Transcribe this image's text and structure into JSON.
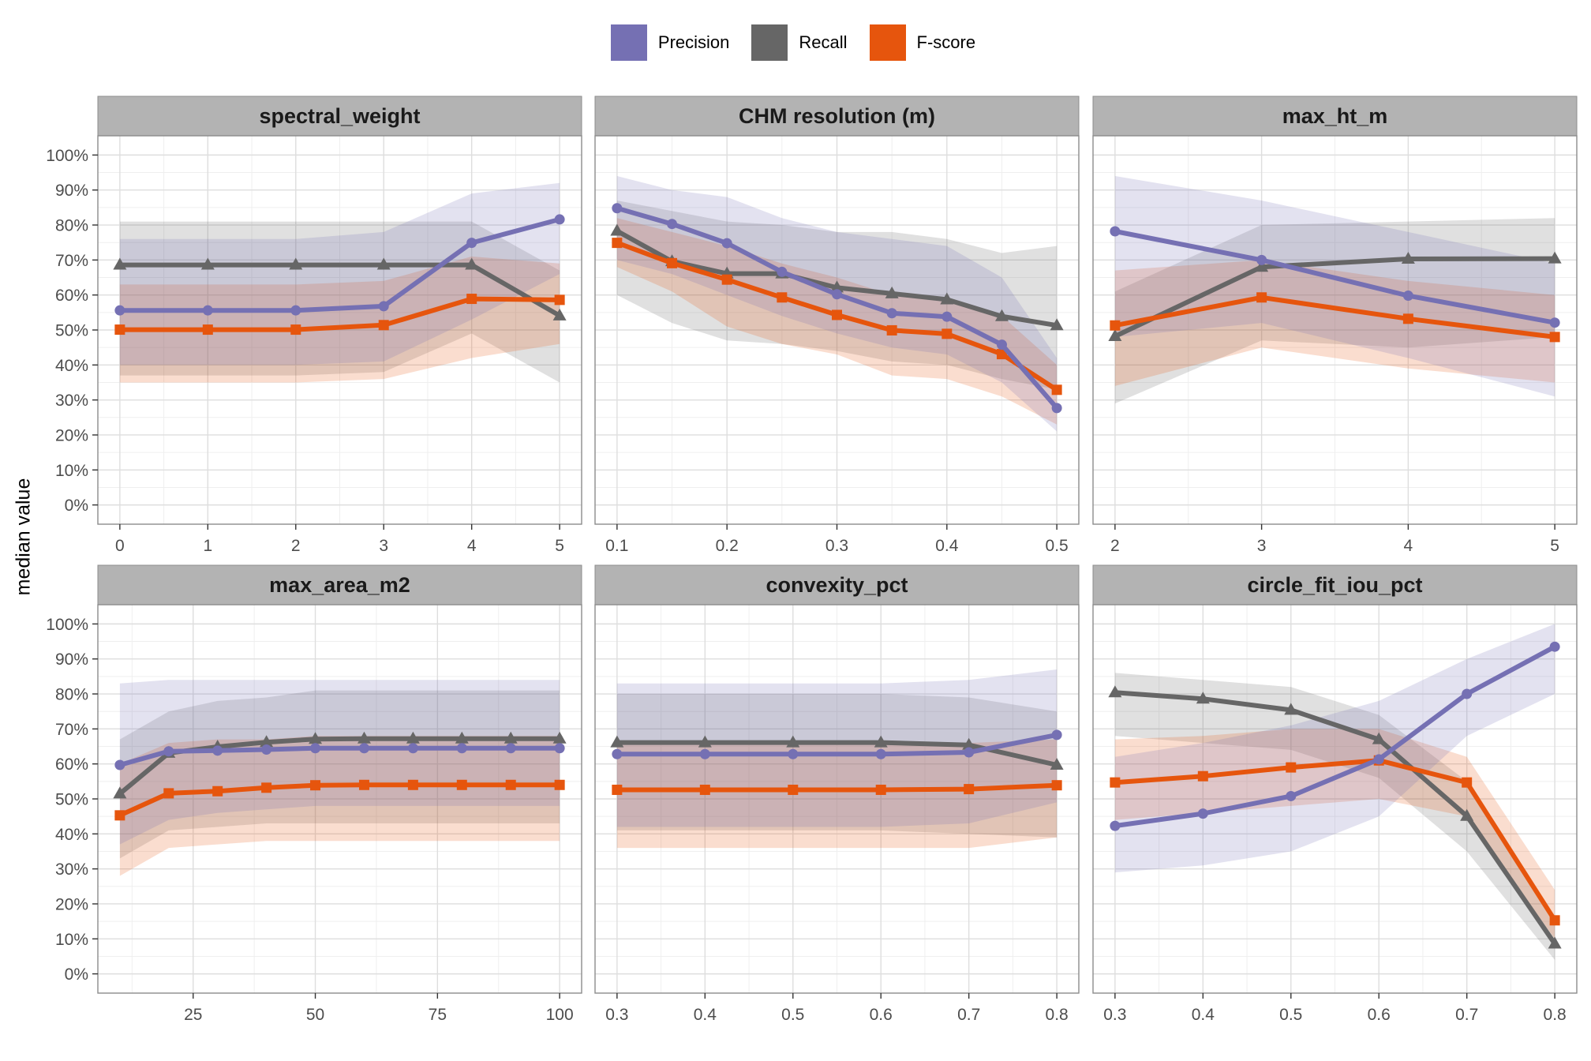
{
  "legend": {
    "items": [
      {
        "label": "Precision",
        "color": "#7570b3"
      },
      {
        "label": "Recall",
        "color": "#666666"
      },
      {
        "label": "F-score",
        "color": "#e6550d"
      }
    ]
  },
  "ylabel": "median value",
  "chart_data": [
    {
      "type": "line",
      "title": "spectral_weight",
      "xlim": [
        -0.25,
        5.25
      ],
      "xticks": [
        0,
        1,
        2,
        3,
        4,
        5
      ],
      "xtick_labels": [
        "0",
        "1",
        "2",
        "3",
        "4",
        "5"
      ],
      "ylim": [
        0,
        100
      ],
      "yticks": [
        0,
        10,
        20,
        30,
        40,
        50,
        60,
        70,
        80,
        90,
        100
      ],
      "ytick_labels": [
        "0%",
        "10%",
        "20%",
        "30%",
        "40%",
        "50%",
        "60%",
        "70%",
        "80%",
        "90%",
        "100%"
      ],
      "x": [
        0,
        1,
        2,
        3,
        4,
        5
      ],
      "series": [
        {
          "name": "Precision",
          "values": [
            55.6,
            55.6,
            55.6,
            56.8,
            74.9,
            81.6
          ],
          "lower": [
            40,
            40,
            40,
            41,
            53,
            66
          ],
          "upper": [
            76,
            76,
            76,
            78,
            89,
            92
          ]
        },
        {
          "name": "Recall",
          "values": [
            68.6,
            68.6,
            68.6,
            68.6,
            68.6,
            54.1
          ],
          "lower": [
            37,
            37,
            37,
            38,
            49,
            35
          ],
          "upper": [
            81,
            81,
            81,
            81,
            81,
            67
          ]
        },
        {
          "name": "F-score",
          "values": [
            50.1,
            50.1,
            50.1,
            51.4,
            58.9,
            58.6
          ],
          "lower": [
            35,
            35,
            35,
            36,
            42,
            46
          ],
          "upper": [
            63,
            63,
            63,
            64,
            71,
            69
          ]
        }
      ]
    },
    {
      "type": "line",
      "title": "CHM resolution (m)",
      "xlim": [
        0.08,
        0.52
      ],
      "xticks": [
        0.1,
        0.2,
        0.3,
        0.4,
        0.5
      ],
      "xtick_labels": [
        "0.1",
        "0.2",
        "0.3",
        "0.4",
        "0.5"
      ],
      "ylim": [
        0,
        100
      ],
      "x": [
        0.1,
        0.15,
        0.2,
        0.25,
        0.3,
        0.35,
        0.4,
        0.45,
        0.5
      ],
      "series": [
        {
          "name": "Precision",
          "values": [
            84.8,
            80.3,
            74.8,
            66.6,
            60.2,
            54.8,
            53.8,
            45.8,
            27.7
          ],
          "lower": [
            70,
            66,
            60,
            54,
            49,
            45,
            43,
            35,
            21
          ],
          "upper": [
            94,
            90,
            88,
            82,
            78,
            76,
            74,
            65,
            42
          ]
        },
        {
          "name": "Recall",
          "values": [
            78.3,
            69.6,
            66.1,
            66.1,
            62.1,
            60.4,
            58.7,
            53.9,
            51.3
          ],
          "lower": [
            60,
            52,
            47,
            46,
            44,
            41,
            40,
            36,
            33
          ],
          "upper": [
            87,
            84,
            81,
            80,
            78,
            78,
            76,
            72,
            74
          ]
        },
        {
          "name": "F-score",
          "values": [
            74.9,
            69.1,
            64.4,
            59.3,
            54.3,
            49.9,
            48.9,
            43.1,
            32.9
          ],
          "lower": [
            68,
            61,
            51,
            46,
            43,
            37,
            36,
            31,
            23
          ],
          "upper": [
            82,
            78,
            74,
            69,
            65,
            60,
            58,
            54,
            40
          ]
        }
      ]
    },
    {
      "type": "line",
      "title": "max_ht_m",
      "xlim": [
        1.85,
        5.15
      ],
      "xticks": [
        2,
        3,
        4,
        5
      ],
      "xtick_labels": [
        "2",
        "3",
        "4",
        "5"
      ],
      "ylim": [
        0,
        100
      ],
      "x": [
        2,
        3,
        4,
        5
      ],
      "series": [
        {
          "name": "Precision",
          "values": [
            78.2,
            70.0,
            59.8,
            52.1
          ],
          "lower": [
            48,
            52,
            42,
            31
          ],
          "upper": [
            94,
            87,
            78,
            69
          ]
        },
        {
          "name": "Recall",
          "values": [
            48.2,
            68.0,
            70.3,
            70.4
          ],
          "lower": [
            29,
            47,
            45,
            48
          ],
          "upper": [
            61,
            80,
            81,
            82
          ]
        },
        {
          "name": "F-score",
          "values": [
            51.3,
            59.3,
            53.2,
            48.0
          ],
          "lower": [
            34,
            45,
            39,
            35
          ],
          "upper": [
            67,
            70,
            64,
            60
          ]
        }
      ]
    },
    {
      "type": "line",
      "title": "max_area_m2",
      "xlim": [
        5.5,
        104.5
      ],
      "xticks": [
        25,
        50,
        75,
        100
      ],
      "xtick_labels": [
        "25",
        "50",
        "75",
        "100"
      ],
      "ylim": [
        0,
        100
      ],
      "x": [
        10,
        20,
        30,
        40,
        50,
        60,
        70,
        80,
        90,
        100
      ],
      "series": [
        {
          "name": "Precision",
          "values": [
            59.7,
            63.6,
            63.8,
            64.1,
            64.5,
            64.5,
            64.5,
            64.5,
            64.5,
            64.5
          ],
          "lower": [
            37,
            44,
            46,
            47,
            48,
            48,
            48,
            48,
            48,
            48
          ],
          "upper": [
            83,
            84,
            84,
            84,
            84,
            84,
            84,
            84,
            84,
            84
          ]
        },
        {
          "name": "Recall",
          "values": [
            51.5,
            63.1,
            64.9,
            66.2,
            67.1,
            67.2,
            67.2,
            67.2,
            67.2,
            67.2
          ],
          "lower": [
            33,
            41,
            42,
            43,
            43,
            43,
            43,
            43,
            43,
            43
          ],
          "upper": [
            67,
            75,
            78,
            79,
            81,
            81,
            81,
            81,
            81,
            81
          ]
        },
        {
          "name": "F-score",
          "values": [
            45.3,
            51.6,
            52.2,
            53.2,
            53.9,
            54.0,
            54.0,
            54.0,
            54.0,
            54.0
          ],
          "lower": [
            28,
            36,
            37,
            38,
            38,
            38,
            38,
            38,
            38,
            38
          ],
          "upper": [
            60,
            66,
            67,
            67,
            68,
            68,
            68,
            68,
            68,
            68
          ]
        }
      ]
    },
    {
      "type": "line",
      "title": "convexity_pct",
      "xlim": [
        0.275,
        0.825
      ],
      "xticks": [
        0.3,
        0.4,
        0.5,
        0.6,
        0.7,
        0.8
      ],
      "xtick_labels": [
        "0.3",
        "0.4",
        "0.5",
        "0.6",
        "0.7",
        "0.8"
      ],
      "ylim": [
        0,
        100
      ],
      "x": [
        0.3,
        0.4,
        0.5,
        0.6,
        0.7,
        0.8
      ],
      "series": [
        {
          "name": "Precision",
          "values": [
            62.8,
            62.8,
            62.8,
            62.8,
            63.3,
            68.3
          ],
          "lower": [
            42,
            42,
            42,
            42,
            43,
            49
          ],
          "upper": [
            83,
            83,
            83,
            83,
            84,
            87
          ]
        },
        {
          "name": "Recall",
          "values": [
            66.1,
            66.1,
            66.1,
            66.1,
            65.4,
            59.7
          ],
          "lower": [
            41,
            41,
            41,
            41,
            40,
            39
          ],
          "upper": [
            80,
            80,
            80,
            80,
            79,
            75
          ]
        },
        {
          "name": "F-score",
          "values": [
            52.6,
            52.6,
            52.6,
            52.6,
            52.8,
            53.9
          ],
          "lower": [
            36,
            36,
            36,
            36,
            36,
            39
          ],
          "upper": [
            66,
            66,
            66,
            66,
            66,
            67
          ]
        }
      ]
    },
    {
      "type": "line",
      "title": "circle_fit_iou_pct",
      "xlim": [
        0.275,
        0.825
      ],
      "xticks": [
        0.3,
        0.4,
        0.5,
        0.6,
        0.7,
        0.8
      ],
      "xtick_labels": [
        "0.3",
        "0.4",
        "0.5",
        "0.6",
        "0.7",
        "0.8"
      ],
      "ylim": [
        0,
        100
      ],
      "x": [
        0.3,
        0.4,
        0.5,
        0.6,
        0.7,
        0.8
      ],
      "series": [
        {
          "name": "Precision",
          "values": [
            42.3,
            45.8,
            50.8,
            61.3,
            80.0,
            93.5
          ],
          "lower": [
            29,
            31,
            35,
            45,
            68,
            80
          ],
          "upper": [
            62,
            66,
            71,
            78,
            90,
            100
          ]
        },
        {
          "name": "Recall",
          "values": [
            80.4,
            78.6,
            75.4,
            67.0,
            45.1,
            8.6
          ],
          "lower": [
            68,
            66,
            64,
            56,
            35,
            4
          ],
          "upper": [
            86,
            84,
            82,
            74,
            55,
            14
          ]
        },
        {
          "name": "F-score",
          "values": [
            54.7,
            56.5,
            59.0,
            61.0,
            54.7,
            15.3
          ],
          "lower": [
            44,
            46,
            48,
            50,
            45,
            10
          ],
          "upper": [
            67,
            68,
            70,
            70,
            62,
            24
          ]
        }
      ]
    }
  ]
}
